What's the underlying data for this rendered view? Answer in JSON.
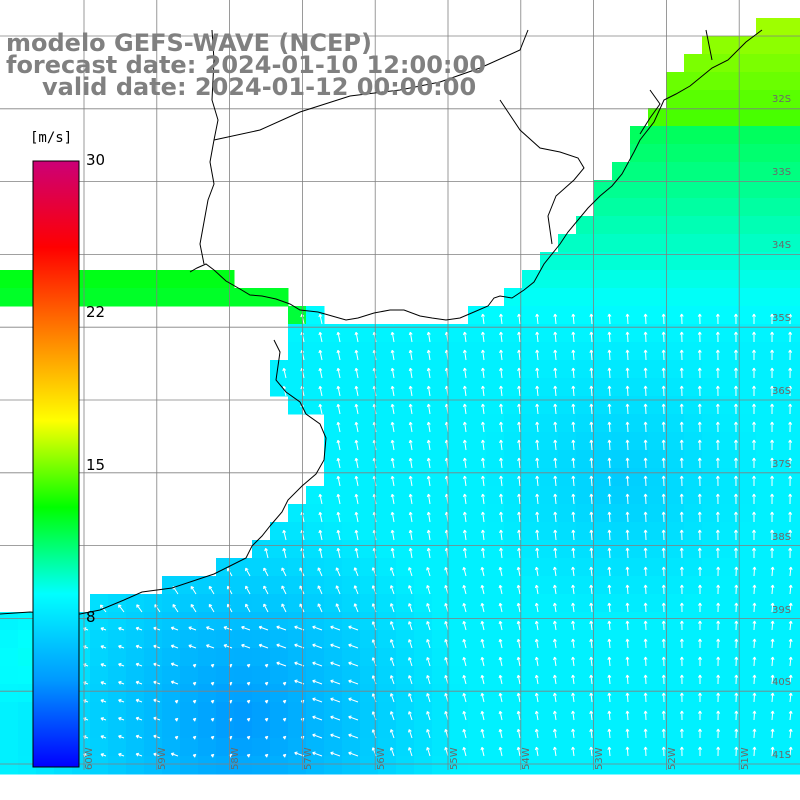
{
  "title": {
    "line1": "modelo GEFS-WAVE (NCEP)",
    "line2": "forecast date: 2024-01-10 12:00:00",
    "line3": "valid date: 2024-01-12 00:00:00"
  },
  "colorbar": {
    "unit": "[m/s]",
    "ticks": [
      "30",
      "22",
      "15",
      "8"
    ],
    "tick_values": [
      30,
      22,
      15,
      8
    ],
    "range": [
      0,
      30
    ],
    "colors": [
      "#0000ff",
      "#0099ff",
      "#00ffff",
      "#00ff00",
      "#ffff00",
      "#ff8000",
      "#ff0000",
      "#cc0077"
    ]
  },
  "lat_labels": [
    "32S",
    "33S",
    "34S",
    "35S",
    "36S",
    "37S",
    "38S",
    "39S",
    "40S",
    "41S"
  ],
  "lon_labels": [
    "60W",
    "59W",
    "58W",
    "57W",
    "56W",
    "55W",
    "54W",
    "53W",
    "52W",
    "51W"
  ],
  "colors": {
    "land": "#ffffff",
    "coastline": "#000000",
    "grid": "#808080",
    "arrows": "#ffffff",
    "title": "#808080"
  }
}
